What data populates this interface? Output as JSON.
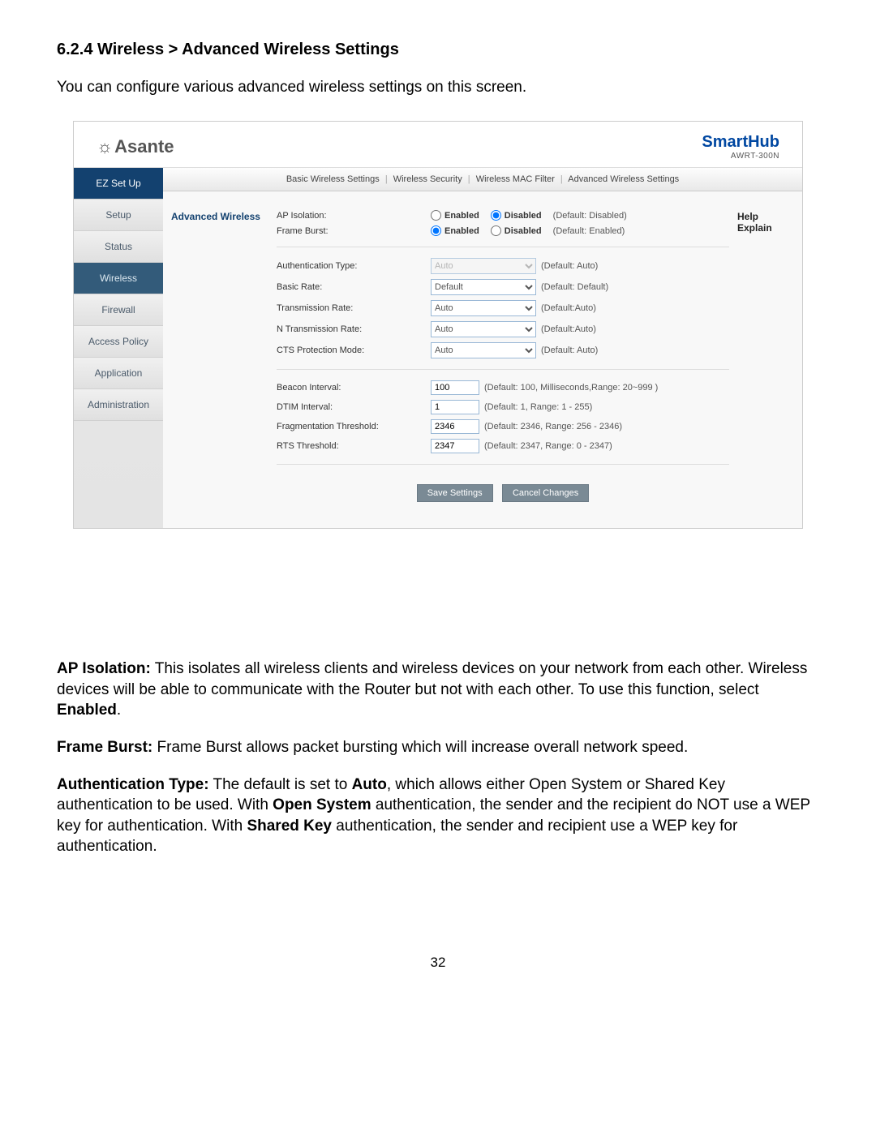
{
  "section": {
    "heading": "6.2.4 Wireless > Advanced Wireless Settings",
    "intro": "You can configure various advanced wireless settings on this screen."
  },
  "brand": {
    "name": "Asante",
    "product": "SmartHub",
    "model": "AWRT-300N"
  },
  "colors": {
    "brand_blue": "#0047a1",
    "sidebar_active_bg": "#13416f",
    "sidebar_selected_bg": "#335b7a",
    "button_bg": "#7a8a95"
  },
  "sidebar": {
    "items": [
      {
        "label": "EZ Set Up",
        "state": "active"
      },
      {
        "label": "Setup",
        "state": "normal"
      },
      {
        "label": "Status",
        "state": "normal"
      },
      {
        "label": "Wireless",
        "state": "selected"
      },
      {
        "label": "Firewall",
        "state": "normal"
      },
      {
        "label": "Access Policy",
        "state": "normal"
      },
      {
        "label": "Application",
        "state": "normal"
      },
      {
        "label": "Administration",
        "state": "normal"
      }
    ]
  },
  "subnav": {
    "items": [
      "Basic Wireless Settings",
      "Wireless Security",
      "Wireless MAC Filter",
      "Advanced Wireless Settings"
    ]
  },
  "content": {
    "section_label": "Advanced Wireless"
  },
  "help": {
    "title": "Help",
    "link": "Explain"
  },
  "radios": {
    "ap_isolation": {
      "label": "AP Isolation:",
      "enabled": "Enabled",
      "disabled": "Disabled",
      "selected": "disabled",
      "hint": "(Default: Disabled)"
    },
    "frame_burst": {
      "label": "Frame Burst:",
      "enabled": "Enabled",
      "disabled": "Disabled",
      "selected": "enabled",
      "hint": "(Default: Enabled)"
    }
  },
  "dropdowns": {
    "auth_type": {
      "label": "Authentication Type:",
      "value": "Auto",
      "hint": "(Default: Auto)",
      "disabled": true
    },
    "basic_rate": {
      "label": "Basic Rate:",
      "value": "Default",
      "hint": "(Default: Default)",
      "disabled": false
    },
    "trans_rate": {
      "label": "Transmission Rate:",
      "value": "Auto",
      "hint": "(Default:Auto)",
      "disabled": false
    },
    "n_trans_rate": {
      "label": "N Transmission Rate:",
      "value": "Auto",
      "hint": "(Default:Auto)",
      "disabled": false
    },
    "cts_mode": {
      "label": "CTS Protection Mode:",
      "value": "Auto",
      "hint": "(Default: Auto)",
      "disabled": false
    }
  },
  "textfields": {
    "beacon": {
      "label": "Beacon Interval:",
      "value": "100",
      "hint": "(Default: 100, Milliseconds,Range: 20~999 )"
    },
    "dtim": {
      "label": "DTIM Interval:",
      "value": "1",
      "hint": "(Default: 1, Range: 1 - 255)"
    },
    "frag": {
      "label": "Fragmentation Threshold:",
      "value": "2346",
      "hint": "(Default: 2346, Range: 256 - 2346)"
    },
    "rts": {
      "label": "RTS Threshold:",
      "value": "2347",
      "hint": "(Default: 2347, Range: 0 - 2347)"
    }
  },
  "buttons": {
    "save": "Save Settings",
    "cancel": "Cancel Changes"
  },
  "paragraphs": {
    "ap_iso_title": "AP Isolation:",
    "ap_iso_body_1": " This isolates all wireless clients and wireless devices on your network from each other. Wireless devices will be able to communicate with the Router but not with each other. To use this function, select ",
    "ap_iso_bold_1": "Enabled",
    "ap_iso_body_2": ".",
    "fb_title": "Frame Burst:",
    "fb_body": " Frame Burst allows packet bursting which will increase overall network speed.",
    "auth_title": "Authentication Type:",
    "auth_body_1": " The default is set to ",
    "auth_bold_1": "Auto",
    "auth_body_2": ", which allows either Open System or Shared Key authentication to be used. With ",
    "auth_bold_2": "Open System",
    "auth_body_3": " authentication, the sender and the recipient do NOT use a WEP key for authentication. With ",
    "auth_bold_3": "Shared Key",
    "auth_body_4": " authentication, the sender and recipient use a WEP key for authentication."
  },
  "page_number": "32"
}
